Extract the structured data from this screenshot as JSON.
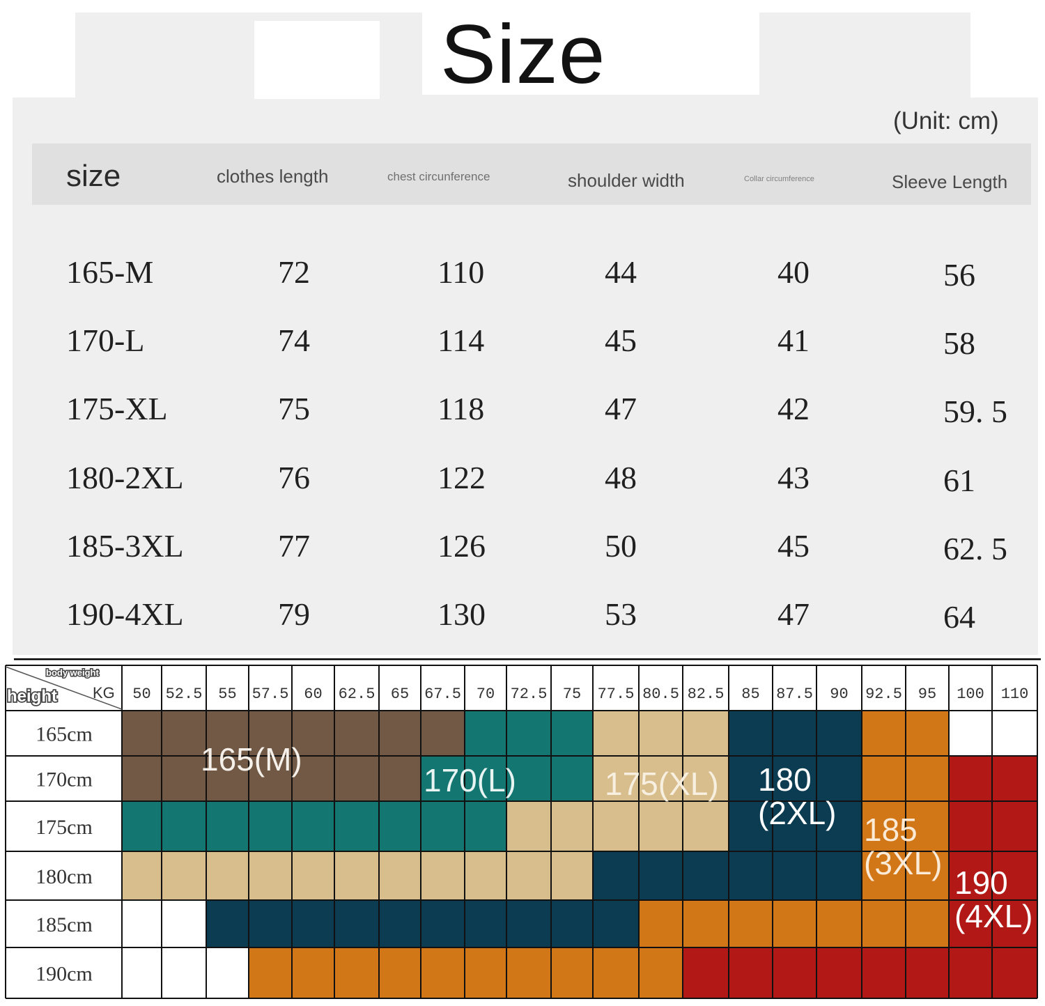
{
  "title": "Size",
  "unit_note": "(Unit: cm)",
  "size_table": {
    "headers": [
      "size",
      "clothes length",
      "chest circunference",
      "shoulder width",
      "Collar circumference",
      "Sleeve Length"
    ],
    "rows": [
      [
        "165-M",
        "72",
        "110",
        "44",
        "40",
        "56"
      ],
      [
        "170-L",
        "74",
        "114",
        "45",
        "41",
        "58"
      ],
      [
        "175-XL",
        "75",
        "118",
        "47",
        "42",
        "59. 5"
      ],
      [
        "180-2XL",
        "76",
        "122",
        "48",
        "43",
        "61"
      ],
      [
        "185-3XL",
        "77",
        "126",
        "50",
        "45",
        "62. 5"
      ],
      [
        "190-4XL",
        "79",
        "130",
        "53",
        "47",
        "64"
      ]
    ]
  },
  "weight_grid": {
    "corner_top": "body weight",
    "corner_left": "height",
    "corner_unit": "KG",
    "weights": [
      "50",
      "52.5",
      "55",
      "57.5",
      "60",
      "62.5",
      "65",
      "67.5",
      "70",
      "72.5",
      "75",
      "77.5",
      "80.5",
      "82.5",
      "85",
      "87.5",
      "90",
      "92.5",
      "95",
      "100",
      "110"
    ],
    "heights": [
      "165cm",
      "170cm",
      "175cm",
      "180cm",
      "185cm",
      "190cm"
    ],
    "colors": {
      "M": "#715946",
      "L": "#137670",
      "XL": "#d8bd8d",
      "2XL": "#0c3c52",
      "3XL": "#d27718",
      "4XL": "#b11816",
      "none": "#ffffff"
    },
    "cells": [
      [
        "M",
        "M",
        "M",
        "M",
        "M",
        "M",
        "M",
        "M",
        "L",
        "L",
        "L",
        "XL",
        "XL",
        "XL",
        "2XL",
        "2XL",
        "2XL",
        "3XL",
        "3XL",
        "none",
        "none"
      ],
      [
        "M",
        "M",
        "M",
        "M",
        "M",
        "M",
        "M",
        "L",
        "L",
        "L",
        "L",
        "XL",
        "XL",
        "XL",
        "2XL",
        "2XL",
        "2XL",
        "3XL",
        "3XL",
        "4XL",
        "4XL"
      ],
      [
        "L",
        "L",
        "L",
        "L",
        "L",
        "L",
        "L",
        "L",
        "L",
        "XL",
        "XL",
        "XL",
        "XL",
        "XL",
        "2XL",
        "2XL",
        "2XL",
        "3XL",
        "3XL",
        "4XL",
        "4XL"
      ],
      [
        "XL",
        "XL",
        "XL",
        "XL",
        "XL",
        "XL",
        "XL",
        "XL",
        "XL",
        "XL",
        "XL",
        "2XL",
        "2XL",
        "2XL",
        "2XL",
        "2XL",
        "2XL",
        "3XL",
        "3XL",
        "4XL",
        "4XL"
      ],
      [
        "none",
        "none",
        "2XL",
        "2XL",
        "2XL",
        "2XL",
        "2XL",
        "2XL",
        "2XL",
        "2XL",
        "2XL",
        "2XL",
        "3XL",
        "3XL",
        "3XL",
        "3XL",
        "3XL",
        "3XL",
        "3XL",
        "4XL",
        "4XL"
      ],
      [
        "none",
        "none",
        "none",
        "3XL",
        "3XL",
        "3XL",
        "3XL",
        "3XL",
        "3XL",
        "3XL",
        "3XL",
        "3XL",
        "3XL",
        "4XL",
        "4XL",
        "4XL",
        "4XL",
        "4XL",
        "4XL",
        "4XL",
        "4XL"
      ]
    ],
    "region_labels": [
      {
        "lines": [
          "165(M)"
        ],
        "color": "#f5f1ea"
      },
      {
        "lines": [
          "170(L)"
        ],
        "color": "#e8f4f2"
      },
      {
        "lines": [
          "175(XL)"
        ],
        "color": "#f7f0e0"
      },
      {
        "lines": [
          "180",
          "(2XL)"
        ],
        "color": "#ffffff"
      },
      {
        "lines": [
          "185",
          "(3XL)"
        ],
        "color": "#fbead6"
      },
      {
        "lines": [
          "190",
          "(4XL)"
        ],
        "color": "#ffffff"
      }
    ]
  }
}
